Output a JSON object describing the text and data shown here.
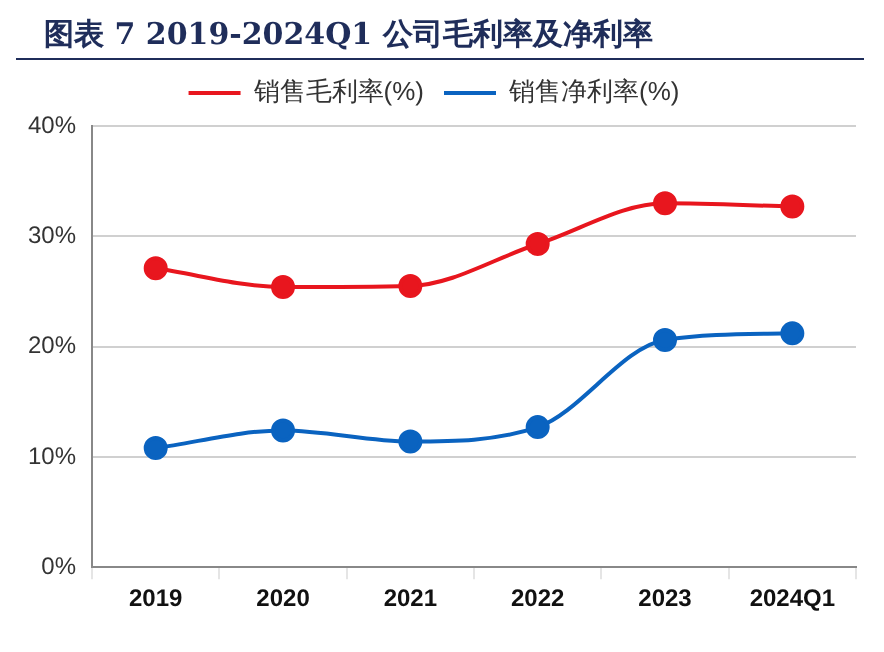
{
  "chart_data": {
    "type": "line",
    "title": "图表 7   2019-2024Q1 公司毛利率及净利率",
    "categories": [
      "2019",
      "2020",
      "2021",
      "2022",
      "2023",
      "2024Q1"
    ],
    "series": [
      {
        "name": "销售毛利率(%)",
        "color": "#e8161e",
        "values": [
          27.1,
          25.4,
          25.5,
          29.3,
          33.0,
          32.7
        ]
      },
      {
        "name": "销售净利率(%)",
        "color": "#0a63c0",
        "values": [
          10.8,
          12.4,
          11.4,
          12.7,
          20.6,
          21.2
        ]
      }
    ],
    "ylim": [
      0,
      40
    ],
    "yticks": [
      {
        "value": 0,
        "label": "0%"
      },
      {
        "value": 10,
        "label": "10%"
      },
      {
        "value": 20,
        "label": "20%"
      },
      {
        "value": 30,
        "label": "30%"
      },
      {
        "value": 40,
        "label": "40%"
      }
    ],
    "grid": "y",
    "legend": "top",
    "marker": "circle",
    "line_style": "solid"
  }
}
